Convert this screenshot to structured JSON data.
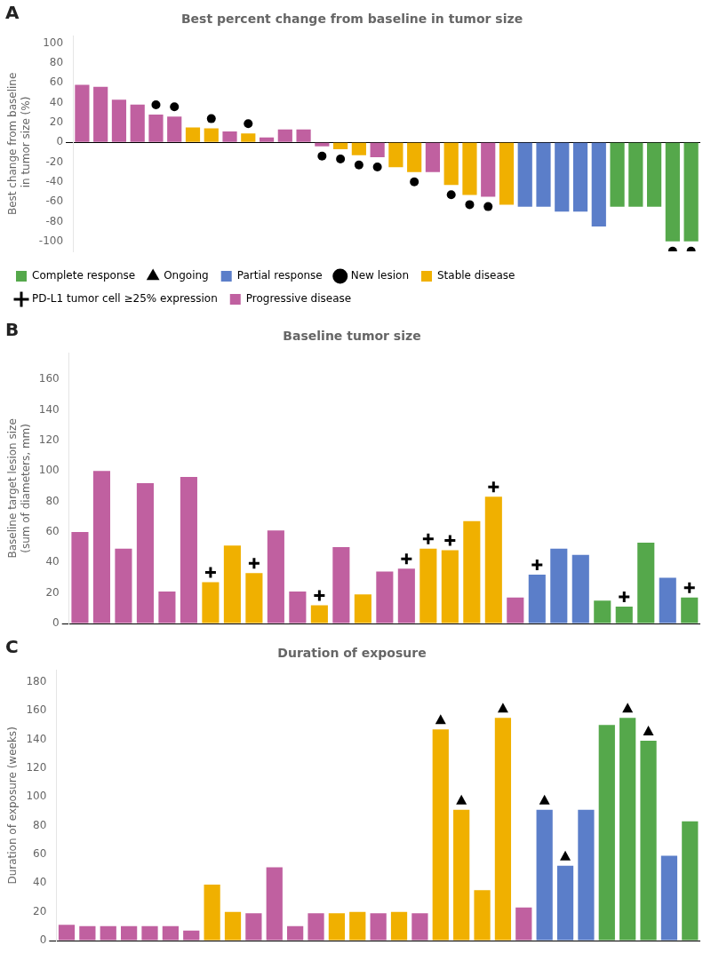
{
  "chart_data": [
    {
      "type": "bar",
      "title": "Best percent change from baseline in tumor size",
      "ylabel": "Best change from baseline\n in tumor size (%)",
      "annotations": [
        {
          "text": "A"
        }
      ],
      "categories": [
        null,
        null,
        null,
        null,
        null,
        null,
        null,
        null,
        null,
        null,
        null,
        null,
        null,
        null,
        null,
        null,
        null,
        null,
        null,
        null,
        null,
        null,
        null,
        null,
        null,
        null,
        null,
        null,
        null,
        null,
        null,
        null,
        null,
        null
      ],
      "values": [
        58,
        56,
        43,
        38,
        28,
        26,
        15,
        14,
        11,
        9,
        5,
        13,
        13,
        -4,
        -7,
        -13,
        -15,
        -25,
        -30,
        -30,
        -43,
        -53,
        -55,
        -63,
        -65,
        -65,
        -70,
        -70,
        -85,
        -65,
        -65,
        -65,
        -100,
        -100
      ],
      "colors": [
        "#C060A0",
        "#C060A0",
        "#C060A0",
        "#C060A0",
        "#C060A0",
        "#C060A0",
        "#F0B000",
        "#F0B000",
        "#C060A0",
        "#F0B000",
        "#C060A0",
        "#C060A0",
        "#C060A0",
        "#C060A0",
        "#F0B000",
        "#F0B000",
        "#C060A0",
        "#F0B000",
        "#F0B000",
        "#C060A0",
        "#F0B000",
        "#F0B000",
        "#C060A0",
        "#F0B000",
        "#5B7EC9",
        "#5B7EC9",
        "#5B7EC9",
        "#5B7EC9",
        "#5B7EC9",
        "#55A84B",
        "#55A84B",
        "#55A84B",
        "#55A84B",
        "#55A84B"
      ],
      "marker_points": {
        "name": "New lesion",
        "marker": "circle",
        "color": "#000000",
        "indices": [
          4,
          5,
          7,
          9,
          13,
          14,
          15,
          16,
          18,
          20,
          21,
          22,
          32,
          33
        ]
      },
      "ylim": [
        -110,
        107
      ],
      "yticks": [
        -100,
        -80,
        -60,
        -40,
        -20,
        0,
        20,
        40,
        60,
        80,
        100
      ],
      "grid": false,
      "tick_labels": "y",
      "legend": "lower left",
      "legend_entries": [
        {
          "name": "Complete response",
          "color": "#55A84B"
        },
        {
          "name": "Ongoing",
          "color": "#000000",
          "marker": "triangle"
        },
        {
          "name": "Partial response",
          "color": "#5B7EC9"
        },
        {
          "name": "New lesion",
          "color": "#000000",
          "marker": "circle"
        },
        {
          "name": "Stable disease",
          "color": "#F0B000"
        },
        {
          "name": "PD-L1 tumor cell ≥25% expression",
          "color": "#000000",
          "marker": "plus"
        },
        {
          "name": "Progressive disease",
          "color": "#C060A0"
        }
      ]
    },
    {
      "type": "bar",
      "title": "Baseline tumor size",
      "ylabel": "Baseline target lesion size\n(sum of diameters, mm)",
      "annotations": [
        {
          "text": "B"
        }
      ],
      "categories": [
        null,
        null,
        null,
        null,
        null,
        null,
        null,
        null,
        null,
        null,
        null,
        null,
        null,
        null,
        null,
        null,
        null,
        null,
        null,
        null,
        null,
        null,
        null,
        null,
        null,
        null,
        null,
        null,
        null
      ],
      "values": [
        60,
        100,
        49,
        92,
        21,
        96,
        27,
        51,
        33,
        61,
        21,
        12,
        50,
        19,
        34,
        36,
        49,
        48,
        67,
        83,
        17,
        32,
        49,
        45,
        15,
        11,
        53,
        30,
        17
      ],
      "colors": [
        "#C060A0",
        "#C060A0",
        "#C060A0",
        "#C060A0",
        "#C060A0",
        "#C060A0",
        "#F0B000",
        "#F0B000",
        "#F0B000",
        "#C060A0",
        "#C060A0",
        "#F0B000",
        "#C060A0",
        "#F0B000",
        "#C060A0",
        "#C060A0",
        "#F0B000",
        "#F0B000",
        "#F0B000",
        "#F0B000",
        "#C060A0",
        "#5B7EC9",
        "#5B7EC9",
        "#5B7EC9",
        "#55A84B",
        "#55A84B",
        "#55A84B",
        "#5B7EC9",
        "#55A84B"
      ],
      "marker_points": {
        "name": "PD-L1 tumor cell ≥25% expression",
        "marker": "plus",
        "color": "#000000",
        "indices": [
          6,
          8,
          11,
          15,
          16,
          17,
          19,
          21,
          25,
          28
        ]
      },
      "ylim": [
        0,
        177
      ],
      "yticks": [
        0,
        20,
        40,
        60,
        80,
        100,
        120,
        140,
        160
      ],
      "grid": false,
      "tick_labels": "y"
    },
    {
      "type": "bar",
      "title": "Duration of exposure",
      "ylabel": "Duration of exposure (weeks)",
      "annotations": [
        {
          "text": "C"
        }
      ],
      "categories": [
        null,
        null,
        null,
        null,
        null,
        null,
        null,
        null,
        null,
        null,
        null,
        null,
        null,
        null,
        null,
        null,
        null,
        null,
        null,
        null,
        null,
        null,
        null,
        null,
        null,
        null,
        null,
        null,
        null,
        null,
        null
      ],
      "values": [
        11,
        10,
        10,
        10,
        10,
        10,
        7,
        39,
        20,
        19,
        51,
        10,
        19,
        19,
        20,
        19,
        20,
        19,
        147,
        91,
        35,
        155,
        23,
        91,
        52,
        91,
        150,
        155,
        139,
        59,
        83
      ],
      "colors": [
        "#C060A0",
        "#C060A0",
        "#C060A0",
        "#C060A0",
        "#C060A0",
        "#C060A0",
        "#C060A0",
        "#F0B000",
        "#F0B000",
        "#C060A0",
        "#C060A0",
        "#C060A0",
        "#C060A0",
        "#F0B000",
        "#F0B000",
        "#C060A0",
        "#F0B000",
        "#C060A0",
        "#F0B000",
        "#F0B000",
        "#F0B000",
        "#F0B000",
        "#C060A0",
        "#5B7EC9",
        "#5B7EC9",
        "#5B7EC9",
        "#55A84B",
        "#55A84B",
        "#55A84B",
        "#5B7EC9",
        "#55A84B"
      ],
      "marker_points": {
        "name": "Ongoing",
        "marker": "triangle",
        "color": "#000000",
        "indices": [
          18,
          19,
          21,
          23,
          24,
          27,
          28
        ]
      },
      "ylim": [
        0,
        188
      ],
      "yticks": [
        0,
        20,
        40,
        60,
        80,
        100,
        120,
        140,
        160,
        180
      ],
      "grid": false,
      "tick_labels": "y"
    }
  ]
}
